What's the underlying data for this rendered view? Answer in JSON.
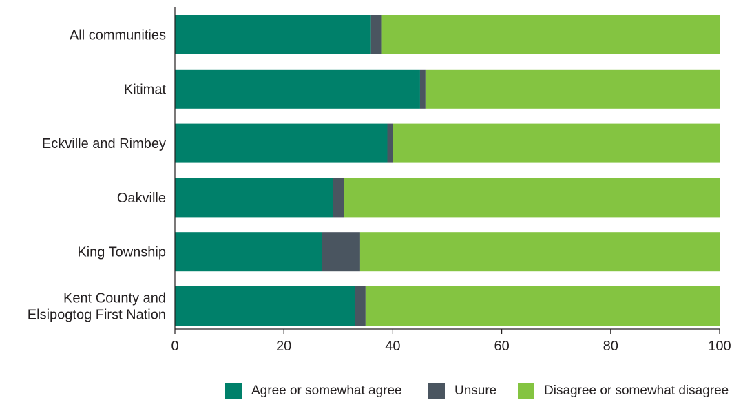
{
  "chart_data": {
    "type": "bar",
    "orientation": "horizontal",
    "stacked": true,
    "categories": [
      "All communities",
      "Kitimat",
      "Eckville and Rimbey",
      "Oakville",
      "King Township",
      "Kent County and Elsipogtog First Nation"
    ],
    "series": [
      {
        "name": "Agree or somewhat agree",
        "color": "#00806a",
        "values": [
          36,
          45,
          39,
          29,
          27,
          33
        ]
      },
      {
        "name": "Unsure",
        "color": "#4a5560",
        "values": [
          2,
          1,
          1,
          2,
          7,
          2
        ]
      },
      {
        "name": "Disagree or somewhat disagree",
        "color": "#84c441",
        "values": [
          62,
          54,
          60,
          69,
          66,
          65
        ]
      }
    ],
    "xlim": [
      0,
      100
    ],
    "xticks": [
      0,
      20,
      40,
      60,
      80,
      100
    ],
    "title": "",
    "xlabel": "",
    "ylabel": "",
    "grid": false,
    "legend_position": "bottom-right"
  }
}
